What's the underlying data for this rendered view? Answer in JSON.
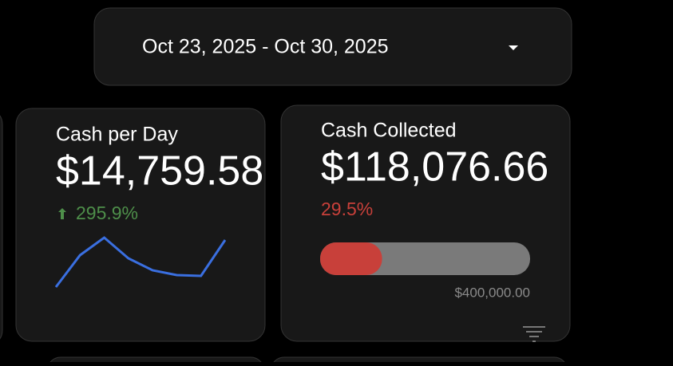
{
  "date_range": "Oct 23, 2025 - Oct 30, 2025",
  "cards": [
    {
      "title": "Cash per Day",
      "value": "$14,759.58",
      "change": "295.9%",
      "sparkline": {
        "values": [
          0,
          40,
          62,
          36,
          21,
          15,
          14,
          59
        ],
        "color": "#3a6fe0"
      }
    },
    {
      "title": "Cash Collected",
      "value": "$118,076.66",
      "percent": "29.5%",
      "progress": {
        "amount": 118076.66,
        "target": {
          "value": 400000,
          "label": "$400,000.00"
        },
        "color": "#c8403a"
      }
    }
  ]
}
